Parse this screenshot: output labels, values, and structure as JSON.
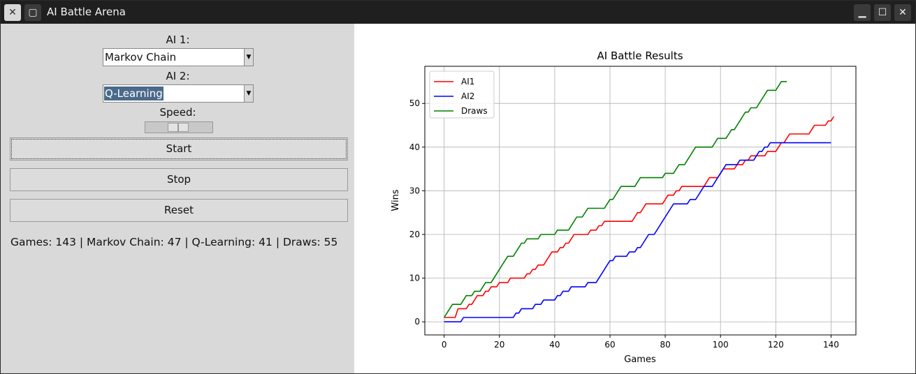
{
  "window": {
    "title": "AI Battle Arena",
    "app_icon": "x-logo-icon",
    "buttons": {
      "minimize": "minimize-icon",
      "maximize": "maximize-icon",
      "close": "close-icon"
    }
  },
  "controls": {
    "ai1_label": "AI 1:",
    "ai1_value": "Markov Chain",
    "ai2_label": "AI 2:",
    "ai2_value": "Q-Learning",
    "speed_label": "Speed:",
    "start_label": "Start",
    "stop_label": "Stop",
    "reset_label": "Reset"
  },
  "status": "Games: 143 | Markov Chain: 47 | Q-Learning: 41 | Draws: 55",
  "chart_data": {
    "type": "line",
    "title": "AI Battle Results",
    "xlabel": "Games",
    "ylabel": "Wins",
    "xlim": [
      -7,
      149
    ],
    "ylim": [
      -3,
      58.5
    ],
    "xticks": [
      0,
      20,
      40,
      60,
      80,
      100,
      120,
      140
    ],
    "yticks": [
      0,
      10,
      20,
      30,
      40,
      50
    ],
    "grid": true,
    "legend": "top-left",
    "series": [
      {
        "name": "AI1",
        "color": "#ff0000",
        "points": [
          [
            0,
            1
          ],
          [
            4,
            1
          ],
          [
            5,
            3
          ],
          [
            8,
            3
          ],
          [
            9,
            4
          ],
          [
            10,
            4
          ],
          [
            11,
            5
          ],
          [
            12,
            6
          ],
          [
            14,
            6
          ],
          [
            15,
            7
          ],
          [
            16,
            7
          ],
          [
            17,
            8
          ],
          [
            19,
            8
          ],
          [
            20,
            9
          ],
          [
            23,
            9
          ],
          [
            24,
            10
          ],
          [
            29,
            10
          ],
          [
            30,
            11
          ],
          [
            31,
            11
          ],
          [
            32,
            12
          ],
          [
            33,
            12
          ],
          [
            34,
            13
          ],
          [
            36,
            13
          ],
          [
            37,
            14
          ],
          [
            38,
            15
          ],
          [
            39,
            16
          ],
          [
            41,
            16
          ],
          [
            42,
            17
          ],
          [
            43,
            17
          ],
          [
            44,
            18
          ],
          [
            45,
            18
          ],
          [
            46,
            19
          ],
          [
            47,
            20
          ],
          [
            52,
            20
          ],
          [
            53,
            21
          ],
          [
            55,
            21
          ],
          [
            56,
            22
          ],
          [
            57,
            22
          ],
          [
            58,
            23
          ],
          [
            68,
            23
          ],
          [
            69,
            24
          ],
          [
            70,
            25
          ],
          [
            71,
            25
          ],
          [
            72,
            26
          ],
          [
            73,
            27
          ],
          [
            79,
            27
          ],
          [
            80,
            28
          ],
          [
            81,
            29
          ],
          [
            83,
            29
          ],
          [
            84,
            30
          ],
          [
            85,
            30
          ],
          [
            86,
            31
          ],
          [
            94,
            31
          ],
          [
            95,
            32
          ],
          [
            96,
            33
          ],
          [
            99,
            33
          ],
          [
            100,
            34
          ],
          [
            101,
            35
          ],
          [
            105,
            35
          ],
          [
            106,
            36
          ],
          [
            108,
            36
          ],
          [
            109,
            37
          ],
          [
            110,
            37
          ],
          [
            111,
            38
          ],
          [
            116,
            38
          ],
          [
            117,
            39
          ],
          [
            120,
            39
          ],
          [
            121,
            40
          ],
          [
            122,
            41
          ],
          [
            123,
            41
          ],
          [
            124,
            42
          ],
          [
            125,
            43
          ],
          [
            132,
            43
          ],
          [
            133,
            44
          ],
          [
            134,
            45
          ],
          [
            138,
            45
          ],
          [
            139,
            46
          ],
          [
            140,
            46
          ],
          [
            141,
            47
          ]
        ]
      },
      {
        "name": "AI2",
        "color": "#0000ff",
        "points": [
          [
            0,
            0
          ],
          [
            6,
            0
          ],
          [
            7,
            1
          ],
          [
            25,
            1
          ],
          [
            26,
            2
          ],
          [
            27,
            2
          ],
          [
            28,
            3
          ],
          [
            32,
            3
          ],
          [
            33,
            4
          ],
          [
            35,
            4
          ],
          [
            36,
            5
          ],
          [
            40,
            5
          ],
          [
            41,
            6
          ],
          [
            42,
            6
          ],
          [
            43,
            7
          ],
          [
            45,
            7
          ],
          [
            46,
            8
          ],
          [
            51,
            8
          ],
          [
            52,
            9
          ],
          [
            55,
            9
          ],
          [
            56,
            10
          ],
          [
            57,
            11
          ],
          [
            58,
            12
          ],
          [
            59,
            13
          ],
          [
            60,
            14
          ],
          [
            61,
            14
          ],
          [
            62,
            15
          ],
          [
            66,
            15
          ],
          [
            67,
            16
          ],
          [
            69,
            16
          ],
          [
            70,
            17
          ],
          [
            71,
            17
          ],
          [
            72,
            18
          ],
          [
            73,
            19
          ],
          [
            74,
            20
          ],
          [
            76,
            20
          ],
          [
            77,
            21
          ],
          [
            78,
            22
          ],
          [
            79,
            23
          ],
          [
            80,
            24
          ],
          [
            81,
            25
          ],
          [
            82,
            26
          ],
          [
            83,
            27
          ],
          [
            88,
            27
          ],
          [
            89,
            28
          ],
          [
            91,
            28
          ],
          [
            92,
            29
          ],
          [
            93,
            30
          ],
          [
            94,
            31
          ],
          [
            97,
            31
          ],
          [
            98,
            32
          ],
          [
            99,
            33
          ],
          [
            100,
            34
          ],
          [
            101,
            35
          ],
          [
            102,
            36
          ],
          [
            106,
            36
          ],
          [
            107,
            37
          ],
          [
            112,
            37
          ],
          [
            113,
            38
          ],
          [
            114,
            39
          ],
          [
            115,
            39
          ],
          [
            116,
            40
          ],
          [
            117,
            40
          ],
          [
            118,
            41
          ],
          [
            140,
            41
          ]
        ]
      },
      {
        "name": "Draws",
        "color": "#008000",
        "points": [
          [
            0,
            1
          ],
          [
            1,
            2
          ],
          [
            2,
            3
          ],
          [
            3,
            4
          ],
          [
            6,
            4
          ],
          [
            7,
            5
          ],
          [
            8,
            6
          ],
          [
            10,
            6
          ],
          [
            11,
            7
          ],
          [
            13,
            7
          ],
          [
            14,
            8
          ],
          [
            15,
            9
          ],
          [
            17,
            9
          ],
          [
            18,
            10
          ],
          [
            19,
            11
          ],
          [
            20,
            12
          ],
          [
            21,
            13
          ],
          [
            22,
            14
          ],
          [
            23,
            15
          ],
          [
            25,
            15
          ],
          [
            26,
            16
          ],
          [
            27,
            17
          ],
          [
            28,
            18
          ],
          [
            29,
            18
          ],
          [
            30,
            19
          ],
          [
            34,
            19
          ],
          [
            35,
            20
          ],
          [
            40,
            20
          ],
          [
            41,
            21
          ],
          [
            45,
            21
          ],
          [
            46,
            22
          ],
          [
            47,
            23
          ],
          [
            48,
            24
          ],
          [
            50,
            24
          ],
          [
            51,
            25
          ],
          [
            52,
            26
          ],
          [
            58,
            26
          ],
          [
            59,
            27
          ],
          [
            60,
            28
          ],
          [
            61,
            28
          ],
          [
            62,
            29
          ],
          [
            63,
            30
          ],
          [
            64,
            31
          ],
          [
            69,
            31
          ],
          [
            70,
            32
          ],
          [
            71,
            33
          ],
          [
            79,
            33
          ],
          [
            80,
            34
          ],
          [
            83,
            34
          ],
          [
            84,
            35
          ],
          [
            85,
            36
          ],
          [
            87,
            36
          ],
          [
            88,
            37
          ],
          [
            89,
            38
          ],
          [
            90,
            39
          ],
          [
            91,
            40
          ],
          [
            97,
            40
          ],
          [
            98,
            41
          ],
          [
            99,
            42
          ],
          [
            102,
            42
          ],
          [
            103,
            43
          ],
          [
            104,
            44
          ],
          [
            105,
            44
          ],
          [
            106,
            45
          ],
          [
            107,
            46
          ],
          [
            108,
            47
          ],
          [
            109,
            48
          ],
          [
            110,
            48
          ],
          [
            111,
            49
          ],
          [
            113,
            49
          ],
          [
            114,
            50
          ],
          [
            115,
            51
          ],
          [
            116,
            52
          ],
          [
            117,
            53
          ],
          [
            120,
            53
          ],
          [
            121,
            54
          ],
          [
            122,
            55
          ],
          [
            124,
            55
          ]
        ]
      }
    ]
  }
}
